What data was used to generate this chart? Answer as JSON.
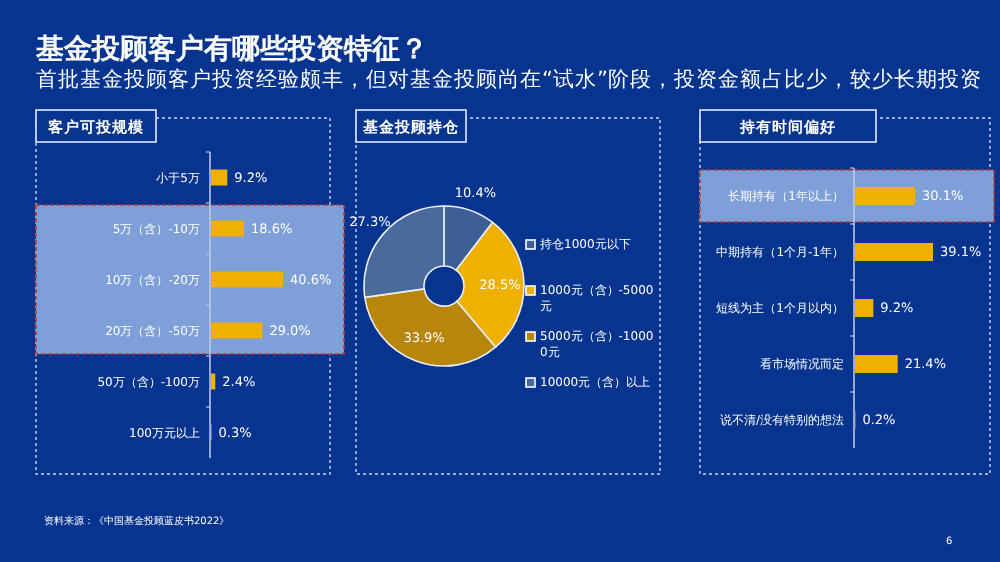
{
  "chart_data": [
    {
      "type": "bar",
      "orientation": "horizontal",
      "title": "客户可投规模",
      "categories": [
        "小于5万",
        "5万（含）-10万",
        "10万（含）-20万",
        "20万（含）-50万",
        "50万（含）-100万",
        "100万元以上"
      ],
      "values": [
        9.2,
        18.6,
        40.6,
        29.0,
        2.4,
        0.3
      ],
      "value_labels": [
        "9.2%",
        "18.6%",
        "40.6%",
        "29.0%",
        "2.4%",
        "0.3%"
      ],
      "color": "#f0b000",
      "bands": [
        {
          "axis": "y",
          "from": "5万（含）-10万",
          "to": "20万（含）-50万",
          "color": "#7f9fd8"
        }
      ],
      "annotations": [
        "基金投顾客户有哪些投资特征？",
        "首批基金投顾客户投资经验颇丰，但对基金投顾尚在“试水”阶段，投资金额占比少，较少长期投资",
        "资料来源：《中国基金投顾蓝皮书2022》"
      ]
    },
    {
      "type": "donut",
      "title": "基金投顾持仓",
      "categories": [
        "持仓1000元以下",
        "1000元（含）-5000元",
        "5000元（含）-10000元",
        "10000元（含）以上"
      ],
      "values": [
        10.4,
        28.5,
        33.9,
        27.3
      ],
      "colors": [
        "#3e5f95",
        "#f0b000",
        "#b8860b",
        "#4b6a9c"
      ],
      "value_labels": [
        "10.4%",
        "28.5%",
        "33.9%",
        "27.3%"
      ],
      "legend": "right"
    },
    {
      "type": "bar",
      "orientation": "horizontal",
      "title": "持有时间偏好",
      "categories": [
        "长期持有（1年以上）",
        "中期持有（1个月-1年）",
        "短线为主（1个月以内）",
        "看市场情况而定",
        "说不清/没有特别的想法"
      ],
      "values": [
        30.1,
        39.1,
        9.2,
        21.4,
        0.2
      ],
      "value_labels": [
        "30.1%",
        "39.1%",
        "9.2%",
        "21.4%",
        "0.2%"
      ],
      "color": "#f0b000",
      "bands": [
        {
          "axis": "y",
          "from": "长期持有（1年以上）",
          "to": "长期持有（1年以上）",
          "color": "#7f9fd8"
        }
      ],
      "annotations": [
        "6"
      ]
    }
  ]
}
